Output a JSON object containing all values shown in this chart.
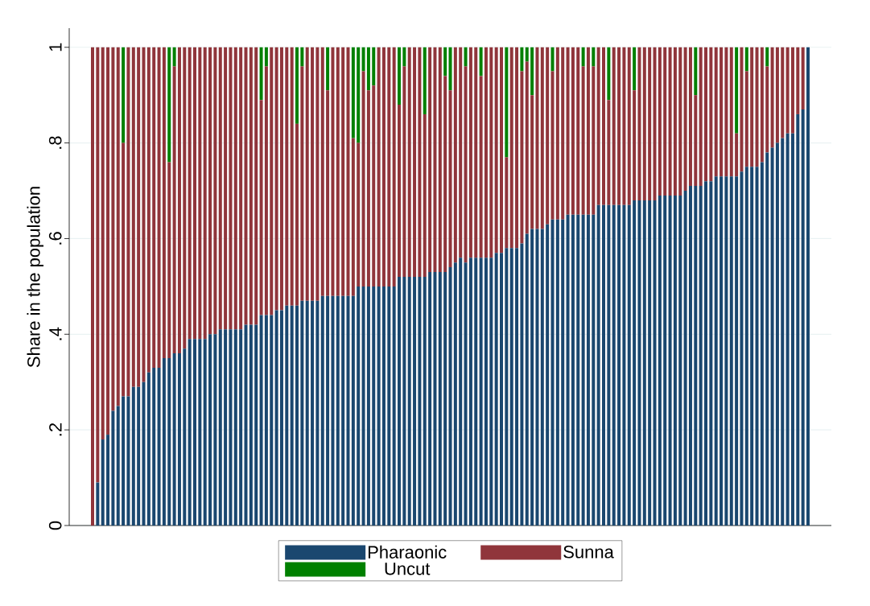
{
  "chart_data": {
    "type": "bar",
    "stacked": true,
    "ylabel": "Share in the population",
    "categories": [
      null,
      null,
      null,
      null,
      null,
      null,
      null,
      null,
      null,
      null,
      null,
      null,
      null,
      null,
      null,
      null,
      null,
      null,
      null,
      null,
      null,
      null,
      null,
      null,
      null,
      null,
      null,
      null,
      null,
      null,
      null,
      null,
      null,
      null,
      null,
      null,
      null,
      null,
      null,
      null,
      null,
      null,
      null,
      null,
      null,
      null,
      null,
      null,
      null,
      null,
      null,
      null,
      null,
      null,
      null,
      null,
      null,
      null,
      null,
      null,
      null,
      null,
      null,
      null,
      null,
      null,
      null,
      null,
      null,
      null,
      null,
      null,
      null,
      null,
      null,
      null,
      null,
      null,
      null,
      null,
      null,
      null,
      null,
      null,
      null,
      null,
      null,
      null,
      null,
      null,
      null,
      null,
      null,
      null,
      null,
      null,
      null,
      null,
      null,
      null,
      null,
      null,
      null,
      null,
      null,
      null,
      null,
      null,
      null,
      null,
      null,
      null,
      null,
      null,
      null,
      null,
      null,
      null,
      null,
      null,
      null,
      null,
      null,
      null,
      null,
      null,
      null,
      null,
      null,
      null,
      null,
      null,
      null,
      null,
      null,
      null,
      null,
      null,
      null,
      null,
      null
    ],
    "series": [
      {
        "name": "Pharaonic",
        "color": "#1a476f",
        "values": [
          0,
          0.09,
          0.18,
          0.19,
          0.24,
          0.25,
          0.27,
          0.27,
          0.29,
          0.29,
          0.3,
          0.32,
          0.33,
          0.33,
          0.35,
          0.35,
          0.36,
          0.36,
          0.37,
          0.39,
          0.39,
          0.39,
          0.39,
          0.4,
          0.4,
          0.41,
          0.41,
          0.41,
          0.41,
          0.41,
          0.42,
          0.42,
          0.42,
          0.44,
          0.44,
          0.44,
          0.45,
          0.45,
          0.46,
          0.46,
          0.46,
          0.47,
          0.47,
          0.47,
          0.47,
          0.48,
          0.48,
          0.48,
          0.48,
          0.48,
          0.48,
          0.48,
          0.5,
          0.5,
          0.5,
          0.5,
          0.5,
          0.5,
          0.5,
          0.5,
          0.52,
          0.52,
          0.52,
          0.52,
          0.52,
          0.52,
          0.53,
          0.53,
          0.53,
          0.53,
          0.54,
          0.55,
          0.56,
          0.55,
          0.56,
          0.56,
          0.56,
          0.56,
          0.56,
          0.57,
          0.57,
          0.58,
          0.58,
          0.58,
          0.59,
          0.61,
          0.62,
          0.62,
          0.62,
          0.63,
          0.64,
          0.64,
          0.64,
          0.65,
          0.65,
          0.65,
          0.65,
          0.65,
          0.65,
          0.67,
          0.67,
          0.67,
          0.67,
          0.67,
          0.67,
          0.67,
          0.68,
          0.68,
          0.68,
          0.68,
          0.68,
          0.69,
          0.69,
          0.69,
          0.69,
          0.69,
          0.7,
          0.71,
          0.71,
          0.71,
          0.72,
          0.72,
          0.73,
          0.73,
          0.73,
          0.73,
          0.73,
          0.74,
          0.75,
          0.75,
          0.75,
          0.76,
          0.78,
          0.79,
          0.8,
          0.81,
          0.82,
          0.82,
          0.86,
          0.87,
          1
        ]
      },
      {
        "name": "Sunna",
        "color": "#90353b",
        "values": [
          1,
          0.91,
          0.82,
          0.81,
          0.76,
          0.75,
          0.53,
          0.73,
          0.71,
          0.71,
          0.7,
          0.68,
          0.67,
          0.67,
          0.65,
          0.41,
          0.6,
          0.64,
          0.63,
          0.61,
          0.61,
          0.61,
          0.61,
          0.6,
          0.6,
          0.59,
          0.59,
          0.59,
          0.59,
          0.59,
          0.58,
          0.58,
          0.58,
          0.45,
          0.52,
          0.56,
          0.55,
          0.55,
          0.54,
          0.54,
          0.38,
          0.49,
          0.53,
          0.53,
          0.53,
          0.52,
          0.43,
          0.52,
          0.52,
          0.52,
          0.52,
          0.33,
          0.3,
          0.45,
          0.41,
          0.42,
          0.5,
          0.5,
          0.5,
          0.5,
          0.36,
          0.44,
          0.48,
          0.48,
          0.48,
          0.34,
          0.47,
          0.47,
          0.47,
          0.41,
          0.37,
          0.45,
          0.44,
          0.41,
          0.44,
          0.44,
          0.38,
          0.44,
          0.44,
          0.43,
          0.43,
          0.19,
          0.42,
          0.42,
          0.36,
          0.36,
          0.28,
          0.38,
          0.38,
          0.37,
          0.31,
          0.36,
          0.36,
          0.35,
          0.35,
          0.35,
          0.31,
          0.35,
          0.31,
          0.33,
          0.33,
          0.22,
          0.33,
          0.33,
          0.33,
          0.33,
          0.23,
          0.32,
          0.32,
          0.32,
          0.32,
          0.31,
          0.31,
          0.31,
          0.31,
          0.31,
          0.3,
          0.29,
          0.19,
          0.29,
          0.28,
          0.28,
          0.27,
          0.27,
          0.27,
          0.27,
          0.09,
          0.26,
          0.2,
          0.25,
          0.25,
          0.24,
          0.18,
          0.21,
          0.2,
          0.19,
          0.18,
          0.18,
          0.14,
          0.13,
          0
        ]
      },
      {
        "name": "Uncut",
        "color": "#008000",
        "values": [
          0,
          0,
          0,
          0,
          0,
          0,
          0.2,
          0,
          0,
          0,
          0,
          0,
          0,
          0,
          0,
          0.24,
          0.04,
          0,
          0,
          0,
          0,
          0,
          0,
          0,
          0,
          0,
          0,
          0,
          0,
          0,
          0,
          0,
          0,
          0.11,
          0.04,
          0,
          0,
          0,
          0,
          0,
          0.16,
          0.04,
          0,
          0,
          0,
          0,
          0.09,
          0,
          0,
          0,
          0,
          0.19,
          0.2,
          0.05,
          0.09,
          0.08,
          0,
          0,
          0,
          0,
          0.12,
          0.04,
          0,
          0,
          0,
          0.14,
          0,
          0,
          0,
          0.06,
          0.09,
          0,
          0,
          0.04,
          0,
          0,
          0.06,
          0,
          0,
          0,
          0,
          0.23,
          0,
          0,
          0.05,
          0.03,
          0.1,
          0,
          0,
          0,
          0.05,
          0,
          0,
          0,
          0,
          0,
          0.04,
          0,
          0.04,
          0,
          0,
          0.11,
          0,
          0,
          0,
          0,
          0.09,
          0,
          0,
          0,
          0,
          0,
          0,
          0,
          0,
          0,
          0,
          0,
          0.1,
          0,
          0,
          0,
          0,
          0,
          0,
          0,
          0.18,
          0,
          0.05,
          0,
          0,
          0,
          0.04,
          0,
          0,
          0,
          0,
          0,
          0,
          0,
          0
        ]
      }
    ],
    "ylim": [
      0,
      1.04
    ],
    "yticks": [
      0,
      {
        "value": 0.2,
        "label": ".2"
      },
      {
        "value": 0.4,
        "label": ".4"
      },
      {
        "value": 0.6,
        "label": ".6"
      },
      {
        "value": 0.8,
        "label": ".8"
      },
      1
    ],
    "grid": "y",
    "legend": "bottom"
  }
}
